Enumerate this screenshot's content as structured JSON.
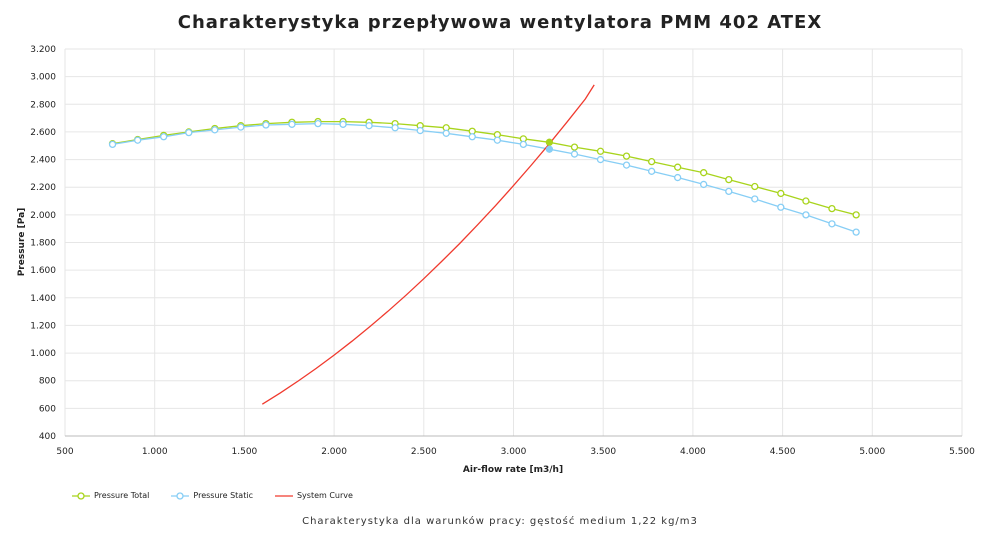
{
  "title": "Charakterystyka przepływowa wentylatora PMM 402 ATEX",
  "footnote": "Charakterystyka dla warunków pracy: gęstość medium 1,22 kg/m3",
  "chart_data": {
    "type": "line",
    "xlabel": "Air-flow rate [m3/h]",
    "ylabel": "Pressure [Pa]",
    "xlim": [
      500,
      5500
    ],
    "ylim": [
      400,
      3200
    ],
    "x_ticks": [
      500,
      1000,
      1500,
      2000,
      2500,
      3000,
      3500,
      4000,
      4500,
      5000,
      5500
    ],
    "x_tick_labels": [
      "500",
      "1.000",
      "1.500",
      "2.000",
      "2.500",
      "3.000",
      "3.500",
      "4.000",
      "4.500",
      "5.000",
      "5.500"
    ],
    "y_ticks": [
      400,
      600,
      800,
      1000,
      1200,
      1400,
      1600,
      1800,
      2000,
      2200,
      2400,
      2600,
      2800,
      3000,
      3200
    ],
    "y_tick_labels": [
      "400",
      "600",
      "800",
      "1.000",
      "1.200",
      "1.400",
      "1.600",
      "1.800",
      "2.000",
      "2.200",
      "2.400",
      "2.600",
      "2.800",
      "3.000",
      "3.200"
    ],
    "grid": true,
    "legend_position": "bottom-left",
    "series": [
      {
        "name": "Pressure Total",
        "color": "#a8d41c",
        "marker": "circle-open",
        "x": [
          765,
          905,
          1050,
          1190,
          1335,
          1480,
          1620,
          1765,
          1910,
          2050,
          2195,
          2340,
          2480,
          2625,
          2770,
          2910,
          3055,
          3200,
          3340,
          3485,
          3630,
          3770,
          3915,
          4060,
          4200,
          4345,
          4490,
          4630,
          4775,
          4910
        ],
        "y": [
          2515,
          2545,
          2575,
          2600,
          2625,
          2645,
          2660,
          2670,
          2675,
          2675,
          2670,
          2660,
          2645,
          2630,
          2605,
          2580,
          2550,
          2525,
          2490,
          2460,
          2425,
          2385,
          2345,
          2305,
          2255,
          2205,
          2155,
          2100,
          2045,
          2000
        ]
      },
      {
        "name": "Pressure Static",
        "color": "#87cef5",
        "marker": "circle-open",
        "x": [
          765,
          905,
          1050,
          1190,
          1335,
          1480,
          1620,
          1765,
          1910,
          2050,
          2195,
          2340,
          2480,
          2625,
          2770,
          2910,
          3055,
          3200,
          3340,
          3485,
          3630,
          3770,
          3915,
          4060,
          4200,
          4345,
          4490,
          4630,
          4775,
          4910
        ],
        "y": [
          2510,
          2540,
          2565,
          2595,
          2615,
          2635,
          2650,
          2655,
          2660,
          2655,
          2645,
          2630,
          2610,
          2590,
          2565,
          2540,
          2510,
          2475,
          2440,
          2400,
          2360,
          2315,
          2270,
          2220,
          2170,
          2115,
          2055,
          2000,
          1935,
          1875
        ]
      },
      {
        "name": "System Curve",
        "color": "#f03a2e",
        "marker": "none",
        "x": [
          1600,
          1700,
          1800,
          1900,
          2000,
          2100,
          2200,
          2300,
          2400,
          2500,
          2600,
          2700,
          2800,
          2900,
          3000,
          3100,
          3200,
          3300,
          3400,
          3450
        ],
        "y": [
          630,
          712,
          798,
          889,
          985,
          1086,
          1192,
          1302,
          1418,
          1538,
          1663,
          1793,
          1928,
          2067,
          2212,
          2361,
          2515,
          2674,
          2838,
          2940
        ]
      }
    ],
    "operating_point": {
      "x": 3200,
      "y_total": 2525,
      "y_static": 2475
    }
  }
}
